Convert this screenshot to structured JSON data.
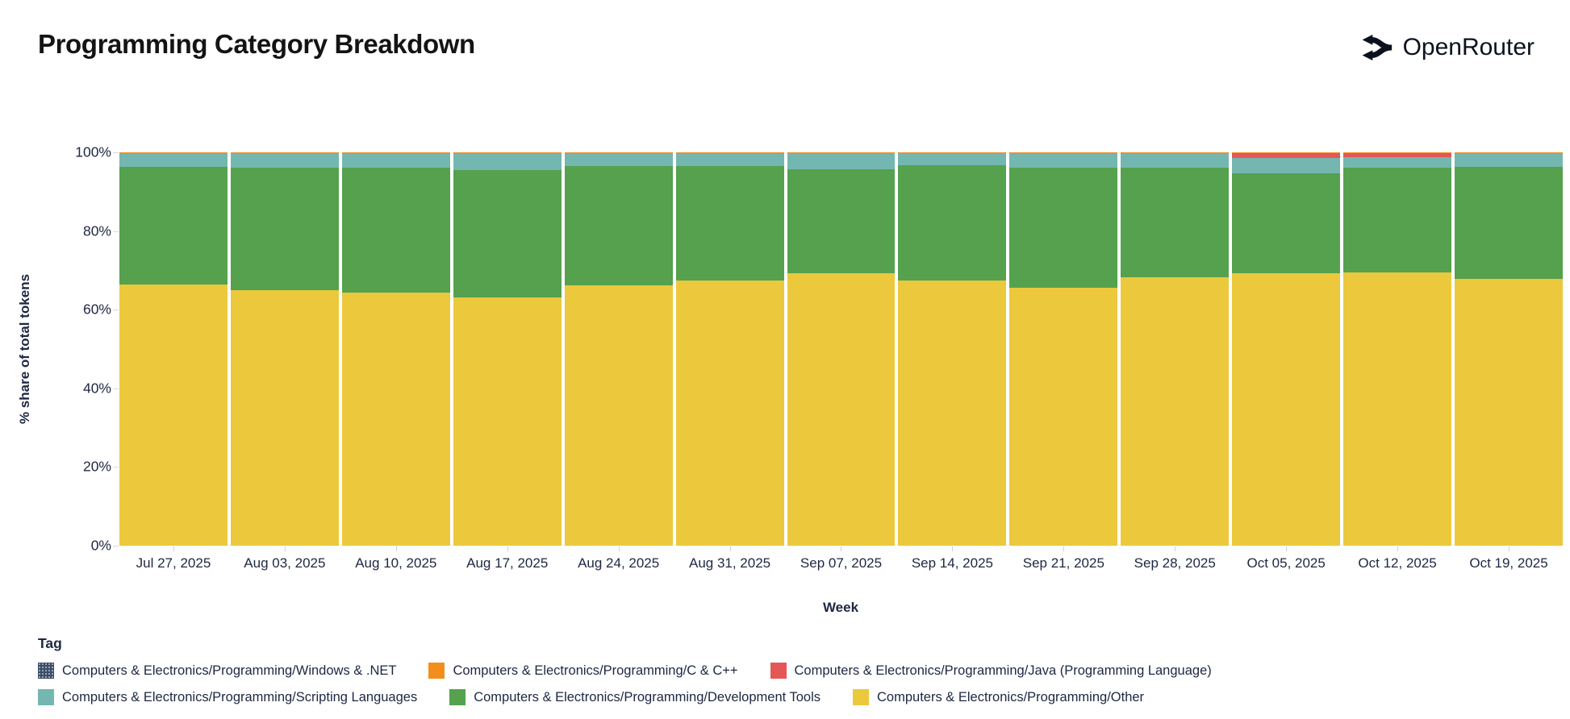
{
  "header": {
    "title": "Programming Category Breakdown",
    "brand": "OpenRouter"
  },
  "chart_data": {
    "type": "bar",
    "stacked": true,
    "normalized": "percent_of_total",
    "title": "Programming Category Breakdown",
    "xlabel": "Week",
    "ylabel": "% share of total tokens",
    "ylim": [
      0,
      100
    ],
    "yticks": [
      0,
      20,
      40,
      60,
      80,
      100
    ],
    "ytick_suffix": "%",
    "grid": false,
    "legend_position": "bottom",
    "categories": [
      "Jul 27, 2025",
      "Aug 03, 2025",
      "Aug 10, 2025",
      "Aug 17, 2025",
      "Aug 24, 2025",
      "Aug 31, 2025",
      "Sep 07, 2025",
      "Sep 14, 2025",
      "Sep 21, 2025",
      "Sep 28, 2025",
      "Oct 05, 2025",
      "Oct 12, 2025",
      "Oct 19, 2025"
    ],
    "stack_order_note": "series listed bottom-to-top of each bar",
    "series": [
      {
        "name": "Computers & Electronics/Programming/Other",
        "color": "#ecc83d",
        "values": [
          66.4,
          65.0,
          64.4,
          63.1,
          66.2,
          67.4,
          69.2,
          67.4,
          65.6,
          68.3,
          69.3,
          69.5,
          67.8
        ]
      },
      {
        "name": "Computers & Electronics/Programming/Development Tools",
        "color": "#55a14e",
        "values": [
          30.0,
          31.1,
          31.6,
          32.3,
          30.3,
          29.2,
          26.4,
          29.4,
          30.5,
          27.9,
          25.4,
          26.7,
          28.5
        ]
      },
      {
        "name": "Computers & Electronics/Programming/Scripting Languages",
        "color": "#74b7b1",
        "values": [
          3.2,
          3.5,
          3.6,
          4.2,
          3.1,
          3.0,
          4.0,
          2.8,
          3.5,
          3.4,
          3.9,
          2.6,
          3.3
        ]
      },
      {
        "name": "Computers & Electronics/Programming/Java (Programming Language)",
        "color": "#e45756",
        "values": [
          0.05,
          0.05,
          0.05,
          0.05,
          0.05,
          0.05,
          0.05,
          0.05,
          0.05,
          0.05,
          1.2,
          1.0,
          0.05
        ]
      },
      {
        "name": "Computers & Electronics/Programming/C & C++",
        "color": "#f28e1c",
        "values": [
          0.3,
          0.3,
          0.3,
          0.3,
          0.3,
          0.3,
          0.3,
          0.3,
          0.3,
          0.3,
          0.15,
          0.15,
          0.3
        ]
      },
      {
        "name": "Computers & Electronics/Programming/Windows & .NET",
        "color": "#3e4c66",
        "values": [
          0.05,
          0.05,
          0.05,
          0.05,
          0.05,
          0.05,
          0.05,
          0.05,
          0.05,
          0.05,
          0.05,
          0.05,
          0.05
        ]
      }
    ]
  },
  "legend": {
    "title": "Tag",
    "per_row": 3,
    "items": [
      {
        "label": "Computers & Electronics/Programming/Windows & .NET",
        "color": "#3e4c66",
        "patterned": true
      },
      {
        "label": "Computers & Electronics/Programming/C & C++",
        "color": "#f28e1c",
        "patterned": false
      },
      {
        "label": "Computers & Electronics/Programming/Java (Programming Language)",
        "color": "#e45756",
        "patterned": false
      },
      {
        "label": "Computers & Electronics/Programming/Scripting Languages",
        "color": "#74b7b1",
        "patterned": false
      },
      {
        "label": "Computers & Electronics/Programming/Development Tools",
        "color": "#55a14e",
        "patterned": false
      },
      {
        "label": "Computers & Electronics/Programming/Other",
        "color": "#ecc83d",
        "patterned": false
      }
    ]
  }
}
